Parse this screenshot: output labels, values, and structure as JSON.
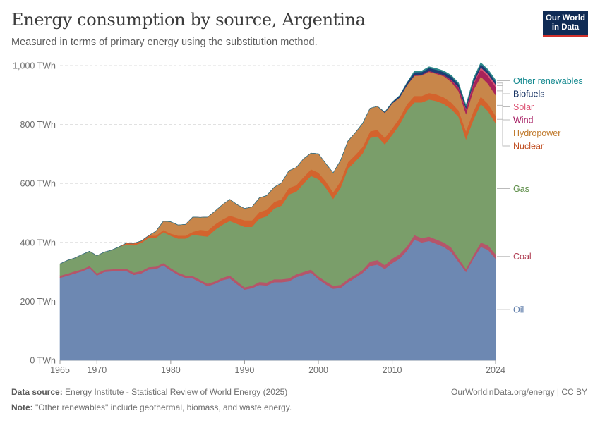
{
  "header": {
    "title": "Energy consumption by source, Argentina",
    "subtitle": "Measured in terms of primary energy using the substitution method.",
    "logo_line1": "Our World",
    "logo_line2": "in Data"
  },
  "footer": {
    "source_label": "Data source:",
    "source_text": "Energy Institute - Statistical Review of World Energy (2025)",
    "note_label": "Note:",
    "note_text": "\"Other renewables\" include geothermal, biomass, and waste energy.",
    "credit": "OurWorldinData.org/energy | CC BY"
  },
  "chart_data": {
    "type": "area",
    "stacked": true,
    "title": "Energy consumption by source, Argentina",
    "ylabel": "",
    "xlabel": "",
    "unit": "TWh",
    "ylim": [
      0,
      1000
    ],
    "yticks": [
      0,
      200,
      400,
      600,
      800,
      1000
    ],
    "ytick_labels": [
      "0 TWh",
      "200 TWh",
      "400 TWh",
      "600 TWh",
      "800 TWh",
      "1,000 TWh"
    ],
    "xlim": [
      1965,
      2024
    ],
    "xticks": [
      1965,
      1970,
      1980,
      1990,
      2000,
      2010,
      2024
    ],
    "xtick_labels": [
      "1965",
      "1970",
      "1980",
      "1990",
      "2000",
      "2010",
      "2024"
    ],
    "legend_position": "right",
    "x": [
      1965,
      1966,
      1967,
      1968,
      1969,
      1970,
      1971,
      1972,
      1973,
      1974,
      1975,
      1976,
      1977,
      1978,
      1979,
      1980,
      1981,
      1982,
      1983,
      1984,
      1985,
      1986,
      1987,
      1988,
      1989,
      1990,
      1991,
      1992,
      1993,
      1994,
      1995,
      1996,
      1997,
      1998,
      1999,
      2000,
      2001,
      2002,
      2003,
      2004,
      2005,
      2006,
      2007,
      2008,
      2009,
      2010,
      2011,
      2012,
      2013,
      2014,
      2015,
      2016,
      2017,
      2018,
      2019,
      2020,
      2021,
      2022,
      2023,
      2024
    ],
    "series": [
      {
        "name": "Oil",
        "color": "#6d88b2",
        "labelColor": "#5b7aa8",
        "values": [
          280,
          287,
          295,
          302,
          313,
          288,
          300,
          302,
          303,
          303,
          290,
          295,
          308,
          310,
          322,
          305,
          290,
          280,
          278,
          265,
          252,
          260,
          272,
          278,
          258,
          240,
          245,
          256,
          254,
          265,
          265,
          268,
          282,
          290,
          298,
          275,
          258,
          243,
          246,
          265,
          280,
          297,
          320,
          325,
          310,
          330,
          345,
          372,
          410,
          400,
          405,
          395,
          385,
          368,
          334,
          300,
          345,
          385,
          375,
          345
        ]
      },
      {
        "name": "Coal",
        "color": "#b5556a",
        "labelColor": "#b13e53",
        "values": [
          7,
          7,
          7,
          7,
          7,
          7,
          7,
          7,
          7,
          8,
          8,
          8,
          8,
          8,
          8,
          8,
          8,
          8,
          8,
          8,
          8,
          8,
          8,
          10,
          10,
          8,
          8,
          10,
          10,
          10,
          10,
          10,
          10,
          10,
          10,
          10,
          10,
          10,
          10,
          10,
          10,
          10,
          15,
          15,
          13,
          15,
          15,
          15,
          15,
          15,
          15,
          15,
          15,
          15,
          12,
          10,
          12,
          15,
          15,
          15
        ]
      },
      {
        "name": "Gas",
        "color": "#7a9e6a",
        "labelColor": "#5b8c46",
        "values": [
          40,
          45,
          45,
          50,
          50,
          60,
          60,
          65,
          75,
          82,
          92,
          95,
          100,
          98,
          105,
          110,
          115,
          125,
          140,
          150,
          160,
          175,
          180,
          185,
          195,
          205,
          200,
          215,
          225,
          240,
          250,
          285,
          280,
          300,
          318,
          330,
          318,
          295,
          330,
          375,
          385,
          395,
          420,
          420,
          410,
          420,
          440,
          460,
          450,
          460,
          465,
          470,
          470,
          470,
          480,
          440,
          460,
          470,
          455,
          445
        ]
      },
      {
        "name": "Nuclear",
        "color": "#d4632d",
        "labelColor": "#c15024",
        "values": [
          0,
          0,
          0,
          0,
          0,
          0,
          0,
          0,
          0,
          5,
          7,
          7,
          7,
          7,
          7,
          7,
          10,
          10,
          10,
          20,
          20,
          18,
          18,
          18,
          20,
          22,
          22,
          22,
          22,
          22,
          22,
          22,
          22,
          22,
          22,
          22,
          22,
          22,
          22,
          22,
          22,
          22,
          22,
          22,
          22,
          22,
          22,
          22,
          22,
          22,
          22,
          22,
          22,
          22,
          22,
          28,
          28,
          25,
          25,
          25
        ]
      },
      {
        "name": "Hydropower",
        "color": "#c8864a",
        "labelColor": "#c07a2c",
        "values": [
          0,
          0,
          0,
          0,
          0,
          0,
          0,
          0,
          0,
          0,
          0,
          0,
          0,
          15,
          30,
          40,
          36,
          38,
          50,
          42,
          46,
          45,
          50,
          55,
          45,
          40,
          45,
          48,
          48,
          50,
          55,
          58,
          60,
          62,
          55,
          64,
          60,
          66,
          70,
          72,
          75,
          80,
          78,
          80,
          85,
          85,
          70,
          65,
          68,
          70,
          72,
          70,
          72,
          70,
          65,
          58,
          72,
          68,
          68,
          70
        ]
      },
      {
        "name": "Wind",
        "color": "#a8235a",
        "labelColor": "#a1115a",
        "values": [
          0,
          0,
          0,
          0,
          0,
          0,
          0,
          0,
          0,
          0,
          0,
          0,
          0,
          0,
          0,
          0,
          0,
          0,
          0,
          0,
          0,
          0,
          0,
          0,
          0,
          0,
          0,
          0,
          0,
          0,
          0,
          0,
          0,
          0,
          0,
          0,
          0,
          0,
          0,
          0,
          0,
          0,
          0,
          0,
          0,
          0,
          0,
          0,
          2,
          2,
          3,
          3,
          4,
          6,
          12,
          15,
          20,
          25,
          26,
          28
        ]
      },
      {
        "name": "Solar",
        "color": "#d95876",
        "labelColor": "#dd5575",
        "values": [
          0,
          0,
          0,
          0,
          0,
          0,
          0,
          0,
          0,
          0,
          0,
          0,
          0,
          0,
          0,
          0,
          0,
          0,
          0,
          0,
          0,
          0,
          0,
          0,
          0,
          0,
          0,
          0,
          0,
          0,
          0,
          0,
          0,
          0,
          0,
          0,
          0,
          0,
          0,
          0,
          0,
          0,
          0,
          0,
          0,
          0,
          0,
          0,
          0,
          0,
          0,
          0,
          0,
          1,
          2,
          3,
          4,
          6,
          7,
          8
        ]
      },
      {
        "name": "Biofuels",
        "color": "#1d3c73",
        "labelColor": "#0e2b5e",
        "values": [
          0,
          0,
          0,
          0,
          0,
          0,
          0,
          0,
          0,
          0,
          0,
          0,
          0,
          0,
          0,
          0,
          0,
          0,
          0,
          0,
          0,
          0,
          0,
          0,
          0,
          0,
          0,
          0,
          0,
          0,
          0,
          0,
          0,
          0,
          0,
          0,
          0,
          0,
          0,
          0,
          0,
          0,
          0,
          0,
          2,
          4,
          6,
          8,
          10,
          9,
          10,
          11,
          10,
          11,
          10,
          8,
          10,
          11,
          10,
          10
        ]
      },
      {
        "name": "Other renewables",
        "color": "#2d8a8a",
        "labelColor": "#13888e",
        "values": [
          0,
          0,
          0,
          0,
          0,
          0,
          0,
          0,
          0,
          0,
          0,
          0,
          0,
          0,
          0,
          0,
          0,
          0,
          0,
          0,
          0,
          0,
          0,
          0,
          0,
          0,
          0,
          0,
          0,
          0,
          0,
          0,
          0,
          0,
          0,
          0,
          0,
          0,
          0,
          0,
          0,
          0,
          0,
          0,
          0,
          0,
          0,
          0,
          4,
          4,
          4,
          4,
          4,
          4,
          4,
          4,
          5,
          5,
          5,
          5
        ]
      }
    ]
  }
}
